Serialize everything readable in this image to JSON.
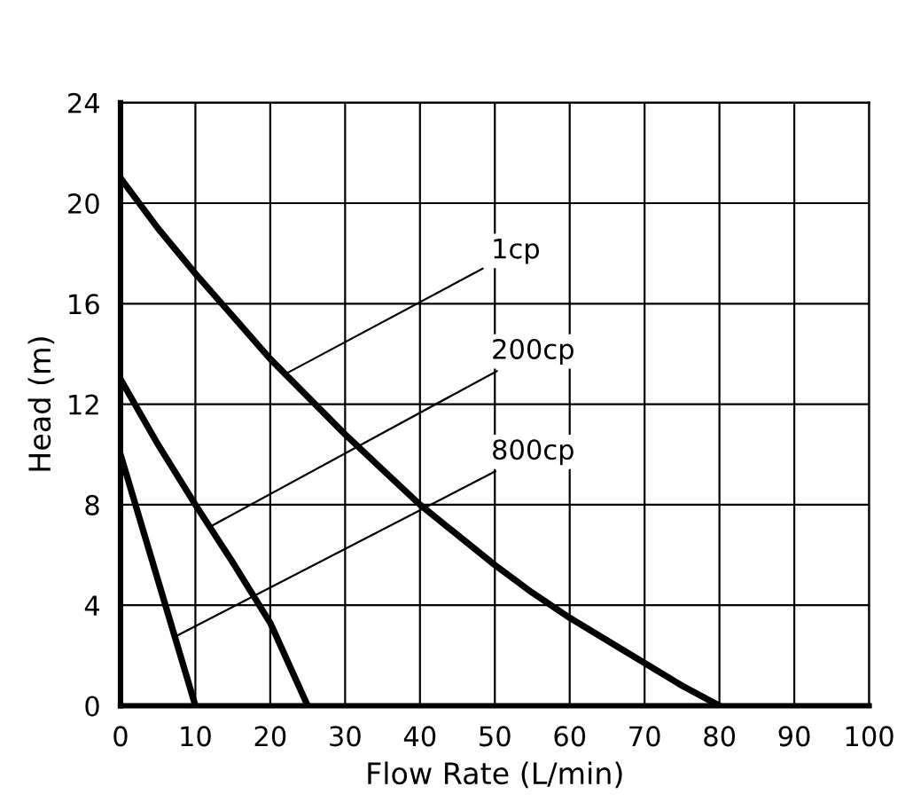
{
  "chart_data": {
    "type": "line",
    "xlabel": "Flow Rate (L/min)",
    "ylabel": "Head (m)",
    "xlim": [
      0,
      100
    ],
    "ylim": [
      0,
      24
    ],
    "xticks": [
      0,
      10,
      20,
      30,
      40,
      50,
      60,
      70,
      80,
      90,
      100
    ],
    "yticks": [
      0,
      4,
      8,
      12,
      16,
      20,
      24
    ],
    "grid": true,
    "marker": "none",
    "line_style": "solid",
    "series": [
      {
        "color": "#000000",
        "x": [
          0,
          5,
          10,
          15,
          20,
          25,
          30,
          35,
          40,
          45,
          50,
          55,
          60,
          65,
          70,
          75,
          80
        ],
        "values": [
          21,
          19,
          17.2,
          15.5,
          13.8,
          12.3,
          10.8,
          9.4,
          8,
          6.8,
          5.6,
          4.5,
          3.5,
          2.6,
          1.7,
          0.8,
          0
        ]
      },
      {
        "color": "#000000",
        "x": [
          0,
          5,
          10,
          15,
          20,
          25
        ],
        "values": [
          13,
          10.4,
          8,
          5.7,
          3.3,
          0
        ]
      },
      {
        "color": "#000000",
        "x": [
          0,
          5,
          10
        ],
        "values": [
          10,
          5,
          0
        ]
      }
    ],
    "annotations": [
      {
        "text": "1cp",
        "x": 22,
        "y": 13.2
      },
      {
        "text": "200cp",
        "x": 11.8,
        "y": 7.1
      },
      {
        "text": "800cp",
        "x": 7.6,
        "y": 2.8
      }
    ]
  }
}
